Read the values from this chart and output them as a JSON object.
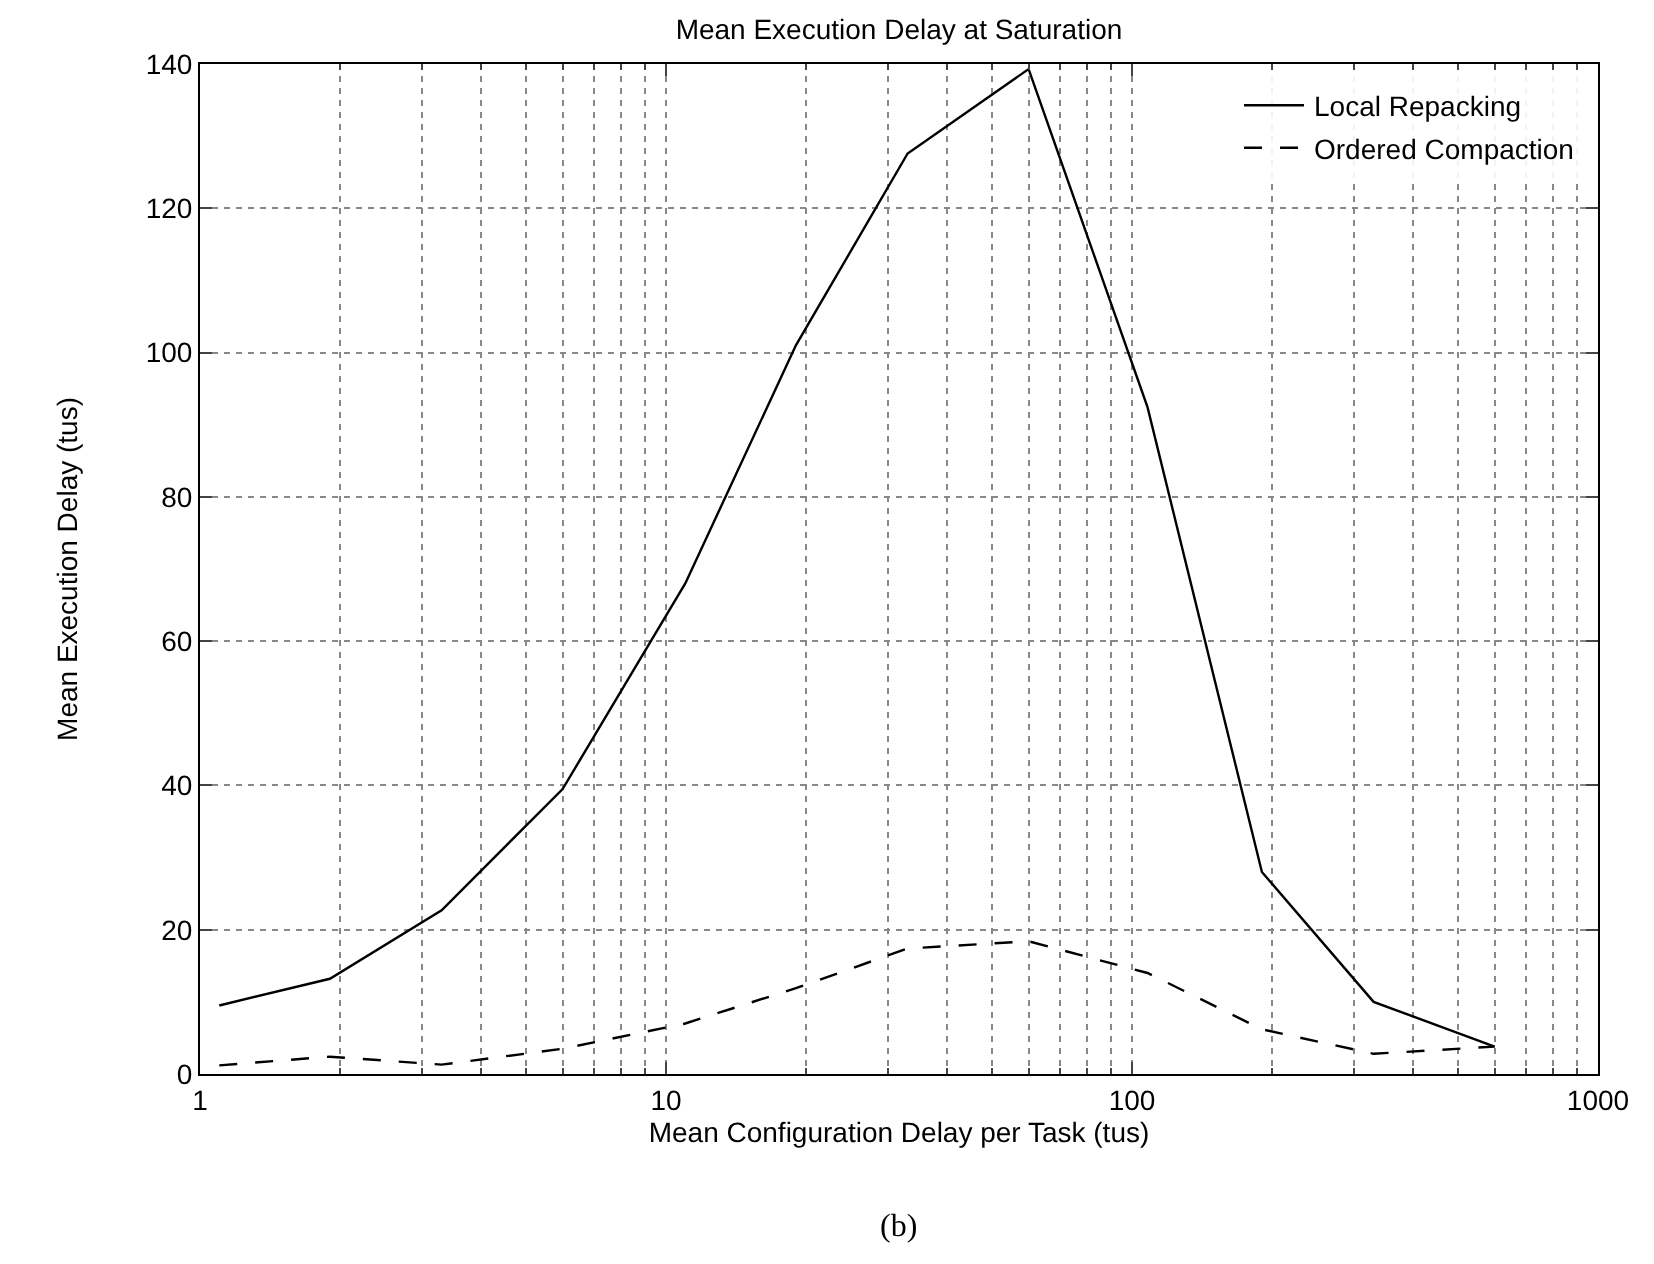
{
  "chart_data": {
    "type": "line",
    "title": "Mean Execution Delay at Saturation",
    "xlabel": "Mean Configuration Delay per Task (tus)",
    "ylabel": "Mean Execution Delay (tus)",
    "log": "x",
    "xlim": [
      1,
      1000
    ],
    "xticks": [
      1,
      10,
      100,
      1000
    ],
    "ylim": [
      0,
      140
    ],
    "yticks": [
      0,
      20,
      40,
      60,
      80,
      100,
      120,
      140
    ],
    "grid": true,
    "legend": "top right",
    "marker": "none",
    "series": [
      {
        "name": "Local Repacking",
        "color": "#000000",
        "line_style": "solid",
        "x": [
          1.1,
          1.9,
          3.3,
          6,
          11,
          19,
          33,
          60,
          108,
          190,
          330,
          600
        ],
        "values": [
          9.5,
          13.2,
          22.7,
          39.5,
          68,
          101,
          127.6,
          139.3,
          92.4,
          28,
          10,
          3.8
        ]
      },
      {
        "name": "Ordered Compaction",
        "color": "#000000",
        "line_style": "dashed",
        "x": [
          1.1,
          1.9,
          3.3,
          6,
          11,
          19,
          33,
          60,
          108,
          190,
          330,
          600
        ],
        "values": [
          1.2,
          2.4,
          1.3,
          3.5,
          7,
          11.9,
          17.4,
          18.4,
          14,
          6.2,
          2.8,
          3.8
        ]
      }
    ],
    "annotations": [
      "(b)"
    ]
  }
}
